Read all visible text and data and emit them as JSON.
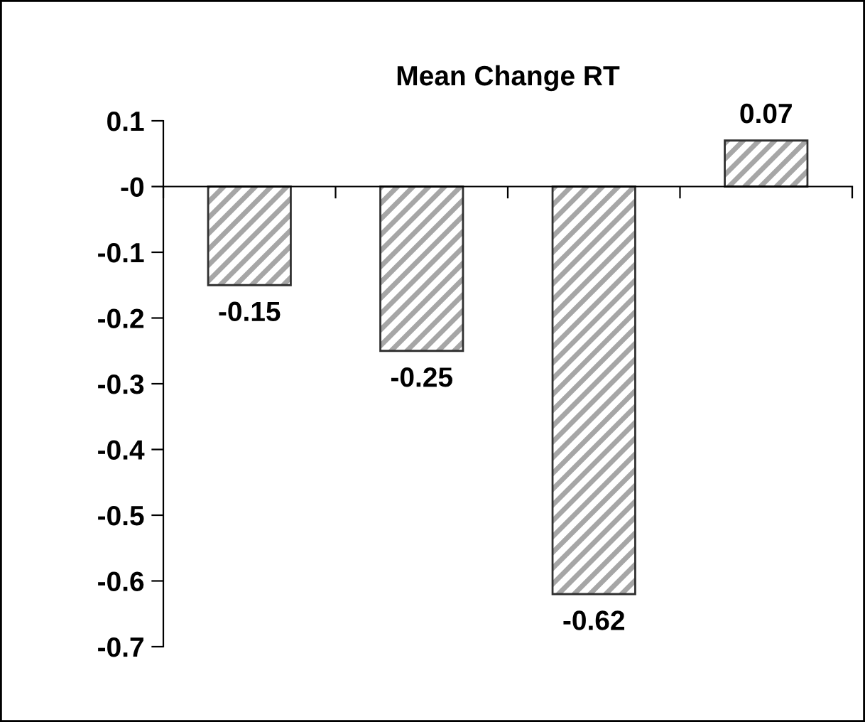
{
  "chart_data": {
    "type": "bar",
    "title": "Mean Change RT",
    "categories": [
      null,
      null,
      null,
      null
    ],
    "values": [
      -0.15,
      -0.25,
      -0.62,
      0.07
    ],
    "color": "#a6a6a6",
    "ylim": [
      -0.7,
      0.1
    ],
    "yticks": [
      0.1,
      {
        "value": 0,
        "label": "-0"
      },
      -0.1,
      -0.2,
      -0.3,
      -0.4,
      -0.5,
      -0.6,
      -0.7
    ],
    "data_labels": true
  }
}
